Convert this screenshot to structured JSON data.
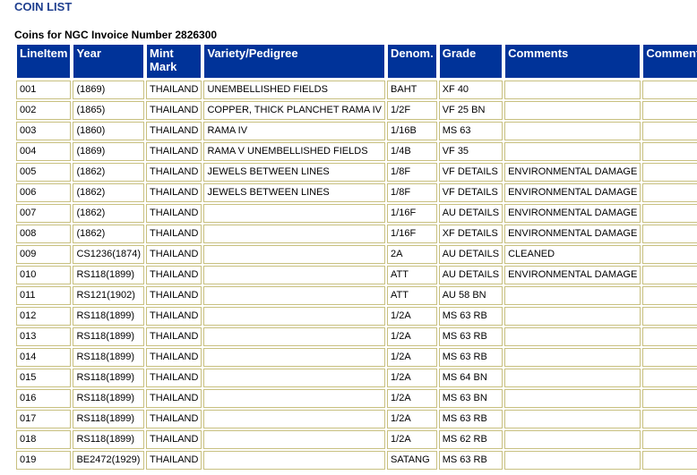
{
  "page": {
    "title": "COIN LIST",
    "subtitle": "Coins for NGC Invoice Number 2826300"
  },
  "table": {
    "headers": [
      "LineItem",
      "Year",
      "Mint Mark",
      "Variety/Pedigree",
      "Denom.",
      "Grade",
      "Comments",
      "Comments"
    ],
    "rows": [
      [
        "001",
        "(1869)",
        "THAILAND",
        "UNEMBELLISHED FIELDS",
        "BAHT",
        "XF 40",
        "",
        ""
      ],
      [
        "002",
        "(1865)",
        "THAILAND",
        "COPPER, THICK PLANCHET RAMA IV",
        "1/2F",
        "VF 25 BN",
        "",
        ""
      ],
      [
        "003",
        "(1860)",
        "THAILAND",
        "RAMA IV",
        "1/16B",
        "MS 63",
        "",
        ""
      ],
      [
        "004",
        "(1869)",
        "THAILAND",
        "RAMA V UNEMBELLISHED FIELDS",
        "1/4B",
        "VF 35",
        "",
        ""
      ],
      [
        "005",
        "(1862)",
        "THAILAND",
        "JEWELS BETWEEN LINES",
        "1/8F",
        "VF DETAILS",
        "ENVIRONMENTAL DAMAGE",
        ""
      ],
      [
        "006",
        "(1862)",
        "THAILAND",
        "JEWELS BETWEEN LINES",
        "1/8F",
        "VF DETAILS",
        "ENVIRONMENTAL DAMAGE",
        ""
      ],
      [
        "007",
        "(1862)",
        "THAILAND",
        "",
        "1/16F",
        "AU DETAILS",
        "ENVIRONMENTAL DAMAGE",
        ""
      ],
      [
        "008",
        "(1862)",
        "THAILAND",
        "",
        "1/16F",
        "XF DETAILS",
        "ENVIRONMENTAL DAMAGE",
        ""
      ],
      [
        "009",
        "CS1236(1874)",
        "THAILAND",
        "",
        "2A",
        "AU DETAILS",
        "CLEANED",
        ""
      ],
      [
        "010",
        "RS118(1899)",
        "THAILAND",
        "",
        "ATT",
        "AU DETAILS",
        "ENVIRONMENTAL DAMAGE",
        ""
      ],
      [
        "011",
        "RS121(1902)",
        "THAILAND",
        "",
        "ATT",
        "AU 58 BN",
        "",
        ""
      ],
      [
        "012",
        "RS118(1899)",
        "THAILAND",
        "",
        "1/2A",
        "MS 63 RB",
        "",
        ""
      ],
      [
        "013",
        "RS118(1899)",
        "THAILAND",
        "",
        "1/2A",
        "MS 63 RB",
        "",
        ""
      ],
      [
        "014",
        "RS118(1899)",
        "THAILAND",
        "",
        "1/2A",
        "MS 63 RB",
        "",
        ""
      ],
      [
        "015",
        "RS118(1899)",
        "THAILAND",
        "",
        "1/2A",
        "MS 64 BN",
        "",
        ""
      ],
      [
        "016",
        "RS118(1899)",
        "THAILAND",
        "",
        "1/2A",
        "MS 63 BN",
        "",
        ""
      ],
      [
        "017",
        "RS118(1899)",
        "THAILAND",
        "",
        "1/2A",
        "MS 63 RB",
        "",
        ""
      ],
      [
        "018",
        "RS118(1899)",
        "THAILAND",
        "",
        "1/2A",
        "MS 62 RB",
        "",
        ""
      ],
      [
        "019",
        "BE2472(1929)",
        "THAILAND",
        "",
        "SATANG",
        "MS 63 RB",
        "",
        ""
      ]
    ]
  },
  "colors": {
    "title": "#1f3f8f",
    "header_bg": "#003399",
    "header_text": "#ffffff",
    "cell_border": "#c8c080"
  }
}
